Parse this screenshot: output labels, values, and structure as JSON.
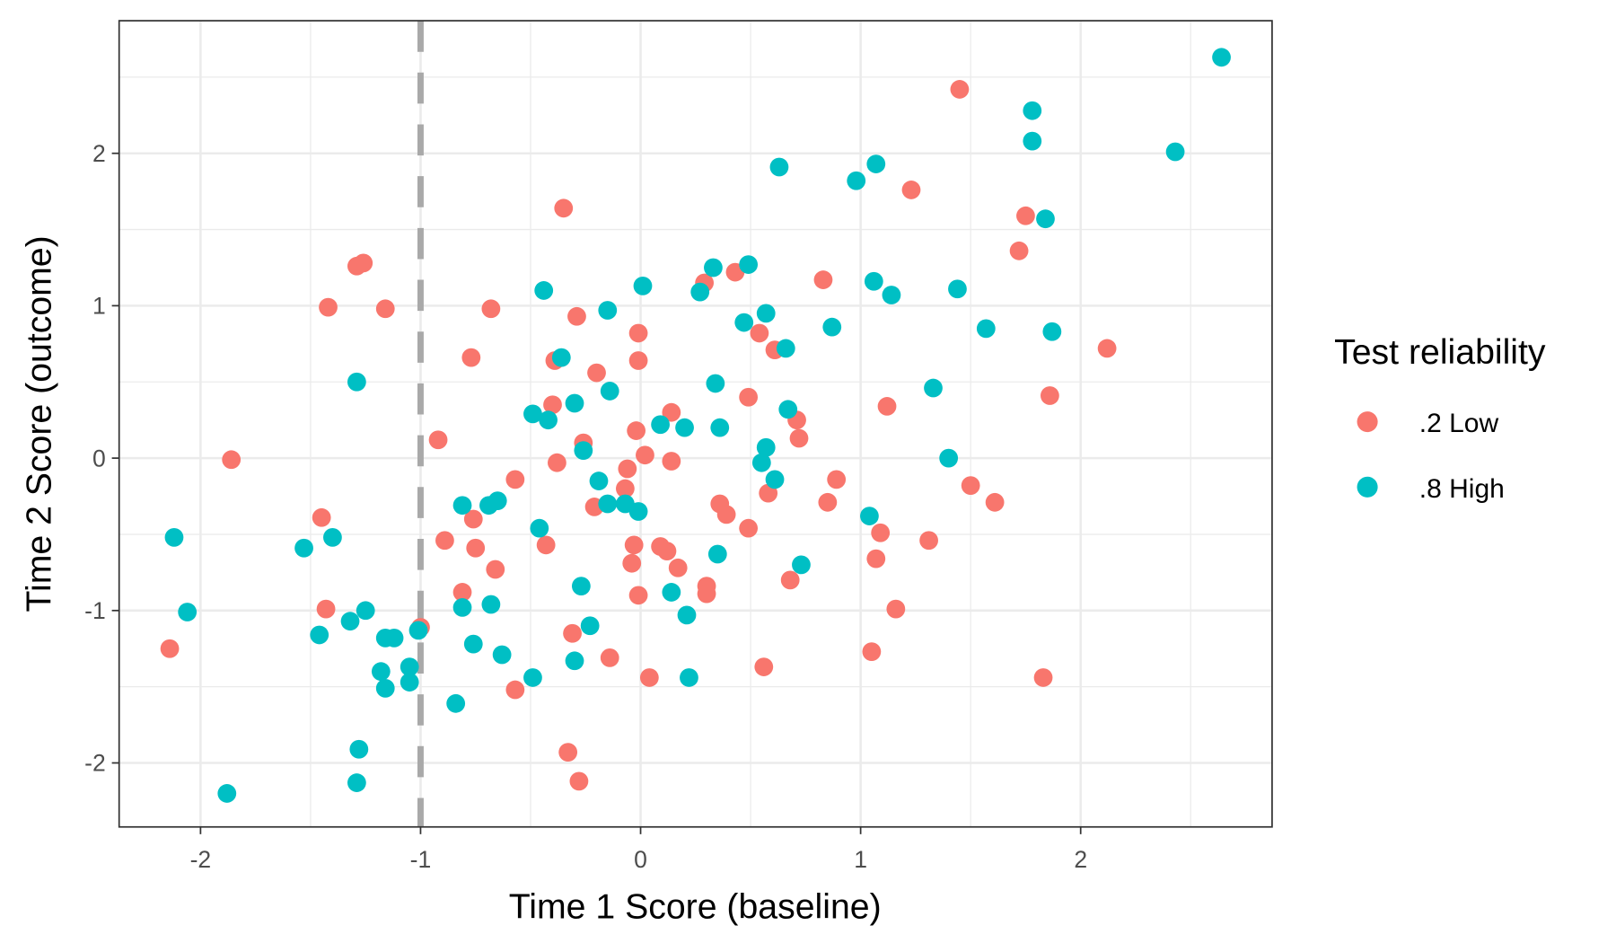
{
  "chart_data": {
    "type": "scatter",
    "title": "",
    "xlabel": "Time 1 Score (baseline)",
    "ylabel": "Time 2 Score (outcome)",
    "xlim": [
      -2.37,
      2.87
    ],
    "ylim": [
      -2.42,
      2.87
    ],
    "x_ticks": [
      -2,
      -1,
      0,
      1,
      2
    ],
    "x_tick_labels": [
      "-2",
      "-1",
      "0",
      "1",
      "2"
    ],
    "y_ticks": [
      -2,
      -1,
      0,
      1,
      2
    ],
    "y_tick_labels": [
      "-2",
      "-1",
      "0",
      "1",
      "2"
    ],
    "grid": true,
    "theme": "black-and-white panel border",
    "reference_line": {
      "axis": "x",
      "value": -1,
      "style": "dashed",
      "color": "#a9a9a9"
    },
    "legend": {
      "title": "Test reliability",
      "position": "right"
    },
    "series": [
      {
        "name": ".2 Low",
        "color": "#F8766D",
        "points": [
          [
            1.45,
            2.42
          ],
          [
            1.23,
            1.76
          ],
          [
            1.75,
            1.59
          ],
          [
            1.72,
            1.36
          ],
          [
            -0.35,
            1.64
          ],
          [
            -1.26,
            1.28
          ],
          [
            -1.29,
            1.26
          ],
          [
            -1.42,
            0.99
          ],
          [
            -1.16,
            0.98
          ],
          [
            -0.68,
            0.98
          ],
          [
            -0.29,
            0.93
          ],
          [
            -0.01,
            0.82
          ],
          [
            -0.77,
            0.66
          ],
          [
            -0.39,
            0.64
          ],
          [
            -0.2,
            0.56
          ],
          [
            -0.01,
            0.64
          ],
          [
            0.43,
            1.22
          ],
          [
            0.29,
            1.15
          ],
          [
            0.83,
            1.17
          ],
          [
            0.54,
            0.82
          ],
          [
            0.61,
            0.71
          ],
          [
            2.12,
            0.72
          ],
          [
            0.49,
            0.4
          ],
          [
            1.86,
            0.41
          ],
          [
            1.12,
            0.34
          ],
          [
            -0.4,
            0.35
          ],
          [
            0.14,
            0.3
          ],
          [
            0.71,
            0.25
          ],
          [
            0.72,
            0.13
          ],
          [
            -0.26,
            0.1
          ],
          [
            -0.92,
            0.12
          ],
          [
            -1.86,
            -0.01
          ],
          [
            -0.02,
            0.18
          ],
          [
            0.02,
            0.02
          ],
          [
            0.14,
            -0.02
          ],
          [
            -0.38,
            -0.03
          ],
          [
            -0.06,
            -0.07
          ],
          [
            -0.57,
            -0.14
          ],
          [
            -0.07,
            -0.2
          ],
          [
            0.89,
            -0.14
          ],
          [
            1.5,
            -0.18
          ],
          [
            0.58,
            -0.23
          ],
          [
            -0.21,
            -0.32
          ],
          [
            0.36,
            -0.3
          ],
          [
            0.39,
            -0.37
          ],
          [
            0.85,
            -0.29
          ],
          [
            1.61,
            -0.29
          ],
          [
            -1.45,
            -0.39
          ],
          [
            -0.76,
            -0.4
          ],
          [
            0.49,
            -0.46
          ],
          [
            1.09,
            -0.49
          ],
          [
            1.31,
            -0.54
          ],
          [
            -0.89,
            -0.54
          ],
          [
            -0.75,
            -0.59
          ],
          [
            -0.43,
            -0.57
          ],
          [
            -0.03,
            -0.57
          ],
          [
            0.09,
            -0.58
          ],
          [
            0.12,
            -0.61
          ],
          [
            -0.04,
            -0.69
          ],
          [
            -0.66,
            -0.73
          ],
          [
            0.17,
            -0.72
          ],
          [
            1.07,
            -0.66
          ],
          [
            0.68,
            -0.8
          ],
          [
            0.3,
            -0.84
          ],
          [
            0.3,
            -0.89
          ],
          [
            -0.01,
            -0.9
          ],
          [
            -0.81,
            -0.88
          ],
          [
            -1.43,
            -0.99
          ],
          [
            1.16,
            -0.99
          ],
          [
            -1.0,
            -1.11
          ],
          [
            -0.31,
            -1.15
          ],
          [
            -2.14,
            -1.25
          ],
          [
            -0.14,
            -1.31
          ],
          [
            1.05,
            -1.27
          ],
          [
            0.56,
            -1.37
          ],
          [
            0.04,
            -1.44
          ],
          [
            1.83,
            -1.44
          ],
          [
            -0.57,
            -1.52
          ],
          [
            -0.33,
            -1.93
          ],
          [
            -0.28,
            -2.12
          ]
        ]
      },
      {
        "name": ".8 High",
        "color": "#00BFC4",
        "points": [
          [
            2.64,
            2.63
          ],
          [
            1.78,
            2.28
          ],
          [
            1.78,
            2.08
          ],
          [
            2.43,
            2.01
          ],
          [
            1.07,
            1.93
          ],
          [
            0.63,
            1.91
          ],
          [
            0.98,
            1.82
          ],
          [
            1.84,
            1.57
          ],
          [
            0.49,
            1.27
          ],
          [
            0.33,
            1.25
          ],
          [
            0.27,
            1.09
          ],
          [
            0.01,
            1.13
          ],
          [
            -0.44,
            1.1
          ],
          [
            1.06,
            1.16
          ],
          [
            1.14,
            1.07
          ],
          [
            1.44,
            1.11
          ],
          [
            -0.15,
            0.97
          ],
          [
            0.57,
            0.95
          ],
          [
            0.47,
            0.89
          ],
          [
            0.87,
            0.86
          ],
          [
            0.66,
            0.72
          ],
          [
            1.57,
            0.85
          ],
          [
            1.87,
            0.83
          ],
          [
            -0.36,
            0.66
          ],
          [
            -1.29,
            0.5
          ],
          [
            -0.14,
            0.44
          ],
          [
            0.34,
            0.49
          ],
          [
            1.33,
            0.46
          ],
          [
            -0.3,
            0.36
          ],
          [
            0.67,
            0.32
          ],
          [
            -0.49,
            0.29
          ],
          [
            -0.42,
            0.25
          ],
          [
            0.09,
            0.22
          ],
          [
            0.2,
            0.2
          ],
          [
            0.36,
            0.2
          ],
          [
            0.57,
            0.07
          ],
          [
            -0.26,
            0.05
          ],
          [
            0.55,
            -0.03
          ],
          [
            1.4,
            0.0
          ],
          [
            -0.19,
            -0.15
          ],
          [
            0.61,
            -0.14
          ],
          [
            -0.81,
            -0.31
          ],
          [
            -0.69,
            -0.31
          ],
          [
            -0.65,
            -0.28
          ],
          [
            -0.15,
            -0.3
          ],
          [
            -0.07,
            -0.3
          ],
          [
            -0.01,
            -0.35
          ],
          [
            1.04,
            -0.38
          ],
          [
            -0.46,
            -0.46
          ],
          [
            -2.12,
            -0.52
          ],
          [
            -1.4,
            -0.52
          ],
          [
            -1.53,
            -0.59
          ],
          [
            0.35,
            -0.63
          ],
          [
            0.73,
            -0.7
          ],
          [
            -0.27,
            -0.84
          ],
          [
            0.14,
            -0.88
          ],
          [
            -0.68,
            -0.96
          ],
          [
            -0.81,
            -0.98
          ],
          [
            -2.06,
            -1.01
          ],
          [
            -1.25,
            -1.0
          ],
          [
            0.21,
            -1.03
          ],
          [
            -1.32,
            -1.07
          ],
          [
            -0.23,
            -1.1
          ],
          [
            -1.46,
            -1.16
          ],
          [
            -1.01,
            -1.13
          ],
          [
            -1.16,
            -1.18
          ],
          [
            -1.12,
            -1.18
          ],
          [
            -0.76,
            -1.22
          ],
          [
            -0.63,
            -1.29
          ],
          [
            -0.3,
            -1.33
          ],
          [
            -1.18,
            -1.4
          ],
          [
            -1.05,
            -1.37
          ],
          [
            -1.05,
            -1.47
          ],
          [
            -1.16,
            -1.51
          ],
          [
            -0.49,
            -1.44
          ],
          [
            0.22,
            -1.44
          ],
          [
            -0.84,
            -1.61
          ],
          [
            -1.28,
            -1.91
          ],
          [
            -1.29,
            -2.13
          ],
          [
            -1.88,
            -2.2
          ]
        ]
      }
    ]
  }
}
